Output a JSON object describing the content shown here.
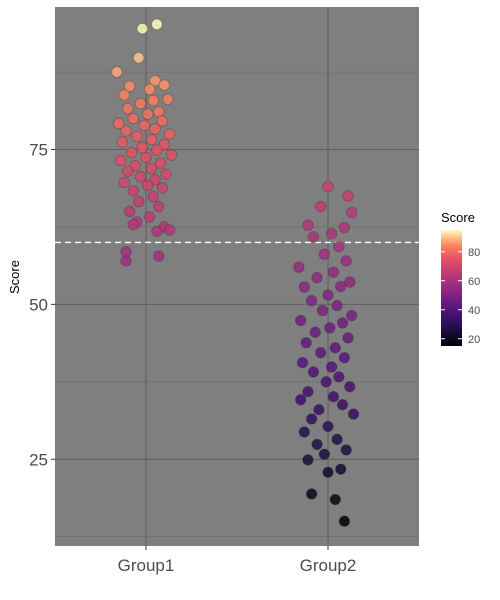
{
  "chart_data": {
    "type": "scatter",
    "title": "",
    "xlabel": "",
    "ylabel": "Score",
    "categories": [
      "Group1",
      "Group2"
    ],
    "ylim": [
      11,
      98
    ],
    "y_ticks": [
      25,
      50,
      75
    ],
    "grid": true,
    "panel_background": "#7f7f7f",
    "reference_line": {
      "y": 60,
      "style": "dashed",
      "color": "#ffffff"
    },
    "point_color_scale": {
      "name": "magma",
      "low": "#000004",
      "mid": "#b73779",
      "high": "#fcfdbf",
      "min": 15,
      "max": 95
    },
    "legend": {
      "title": "Score",
      "placement": "right",
      "ticks": [
        20,
        40,
        60,
        80
      ]
    },
    "series": [
      {
        "category": "Group1",
        "points": [
          {
            "x": -0.02,
            "y": 94.5
          },
          {
            "x": 0.06,
            "y": 95.2
          },
          {
            "x": -0.16,
            "y": 87.5
          },
          {
            "x": -0.04,
            "y": 89.8
          },
          {
            "x": 0.05,
            "y": 86.1
          },
          {
            "x": 0.1,
            "y": 85.4
          },
          {
            "x": -0.09,
            "y": 85.2
          },
          {
            "x": 0.02,
            "y": 84.7
          },
          {
            "x": -0.12,
            "y": 83.8
          },
          {
            "x": 0.12,
            "y": 83.1
          },
          {
            "x": 0.04,
            "y": 82.9
          },
          {
            "x": -0.03,
            "y": 82.4
          },
          {
            "x": -0.1,
            "y": 81.6
          },
          {
            "x": 0.07,
            "y": 81.1
          },
          {
            "x": 0.01,
            "y": 80.7
          },
          {
            "x": -0.07,
            "y": 80.0
          },
          {
            "x": 0.09,
            "y": 79.6
          },
          {
            "x": -0.15,
            "y": 79.2
          },
          {
            "x": -0.01,
            "y": 78.9
          },
          {
            "x": 0.05,
            "y": 78.3
          },
          {
            "x": -0.11,
            "y": 78.0
          },
          {
            "x": 0.13,
            "y": 77.5
          },
          {
            "x": -0.05,
            "y": 77.1
          },
          {
            "x": 0.03,
            "y": 76.6
          },
          {
            "x": -0.13,
            "y": 76.2
          },
          {
            "x": 0.1,
            "y": 75.8
          },
          {
            "x": -0.02,
            "y": 75.3
          },
          {
            "x": 0.06,
            "y": 74.9
          },
          {
            "x": -0.08,
            "y": 74.5
          },
          {
            "x": 0.14,
            "y": 74.1
          },
          {
            "x": 0.0,
            "y": 73.7
          },
          {
            "x": -0.14,
            "y": 73.2
          },
          {
            "x": 0.08,
            "y": 72.8
          },
          {
            "x": -0.06,
            "y": 72.4
          },
          {
            "x": 0.03,
            "y": 71.9
          },
          {
            "x": -0.1,
            "y": 71.5
          },
          {
            "x": 0.11,
            "y": 71.0
          },
          {
            "x": -0.03,
            "y": 70.6
          },
          {
            "x": 0.05,
            "y": 70.1
          },
          {
            "x": -0.12,
            "y": 69.7
          },
          {
            "x": 0.01,
            "y": 69.2
          },
          {
            "x": 0.09,
            "y": 68.8
          },
          {
            "x": -0.07,
            "y": 68.3
          },
          {
            "x": 0.04,
            "y": 67.4
          },
          {
            "x": -0.04,
            "y": 66.6
          },
          {
            "x": 0.07,
            "y": 65.8
          },
          {
            "x": -0.09,
            "y": 65.0
          },
          {
            "x": 0.02,
            "y": 64.1
          },
          {
            "x": -0.05,
            "y": 63.3
          },
          {
            "x": 0.1,
            "y": 62.5
          },
          {
            "x": -0.07,
            "y": 62.9
          },
          {
            "x": 0.06,
            "y": 61.8
          },
          {
            "x": 0.13,
            "y": 62.0
          },
          {
            "x": -0.11,
            "y": 58.5
          },
          {
            "x": -0.11,
            "y": 57.0
          },
          {
            "x": 0.07,
            "y": 57.8
          }
        ]
      },
      {
        "category": "Group2",
        "points": [
          {
            "x": 0.0,
            "y": 69.0
          },
          {
            "x": 0.11,
            "y": 67.5
          },
          {
            "x": -0.04,
            "y": 65.8
          },
          {
            "x": 0.13,
            "y": 64.8
          },
          {
            "x": -0.11,
            "y": 62.8
          },
          {
            "x": 0.09,
            "y": 62.4
          },
          {
            "x": 0.02,
            "y": 61.4
          },
          {
            "x": -0.08,
            "y": 60.9
          },
          {
            "x": 0.06,
            "y": 59.3
          },
          {
            "x": -0.02,
            "y": 58.1
          },
          {
            "x": 0.1,
            "y": 57.0
          },
          {
            "x": -0.16,
            "y": 56.0
          },
          {
            "x": 0.03,
            "y": 55.2
          },
          {
            "x": -0.06,
            "y": 54.3
          },
          {
            "x": 0.12,
            "y": 53.6
          },
          {
            "x": -0.13,
            "y": 52.8
          },
          {
            "x": 0.07,
            "y": 52.9
          },
          {
            "x": 0.0,
            "y": 51.5
          },
          {
            "x": -0.09,
            "y": 50.6
          },
          {
            "x": 0.05,
            "y": 49.8
          },
          {
            "x": -0.03,
            "y": 49.0
          },
          {
            "x": 0.13,
            "y": 48.2
          },
          {
            "x": -0.15,
            "y": 47.4
          },
          {
            "x": 0.08,
            "y": 47.0
          },
          {
            "x": 0.01,
            "y": 46.2
          },
          {
            "x": -0.07,
            "y": 45.5
          },
          {
            "x": 0.11,
            "y": 44.6
          },
          {
            "x": -0.12,
            "y": 43.8
          },
          {
            "x": 0.04,
            "y": 43.0
          },
          {
            "x": -0.04,
            "y": 42.2
          },
          {
            "x": 0.09,
            "y": 41.4
          },
          {
            "x": -0.14,
            "y": 40.6
          },
          {
            "x": 0.02,
            "y": 39.9
          },
          {
            "x": -0.08,
            "y": 39.1
          },
          {
            "x": 0.06,
            "y": 38.3
          },
          {
            "x": -0.01,
            "y": 37.5
          },
          {
            "x": 0.12,
            "y": 36.7
          },
          {
            "x": -0.11,
            "y": 35.9
          },
          {
            "x": 0.03,
            "y": 35.1
          },
          {
            "x": -0.15,
            "y": 34.6
          },
          {
            "x": 0.08,
            "y": 33.8
          },
          {
            "x": -0.05,
            "y": 33.0
          },
          {
            "x": 0.14,
            "y": 32.3
          },
          {
            "x": -0.09,
            "y": 31.5
          },
          {
            "x": 0.0,
            "y": 30.3
          },
          {
            "x": -0.13,
            "y": 29.4
          },
          {
            "x": 0.05,
            "y": 28.2
          },
          {
            "x": -0.06,
            "y": 27.4
          },
          {
            "x": 0.1,
            "y": 26.5
          },
          {
            "x": -0.02,
            "y": 25.8
          },
          {
            "x": -0.11,
            "y": 24.9
          },
          {
            "x": 0.07,
            "y": 23.4
          },
          {
            "x": 0.0,
            "y": 22.9
          },
          {
            "x": -0.09,
            "y": 19.4
          },
          {
            "x": 0.04,
            "y": 18.5
          },
          {
            "x": 0.09,
            "y": 15.0
          }
        ]
      }
    ]
  }
}
